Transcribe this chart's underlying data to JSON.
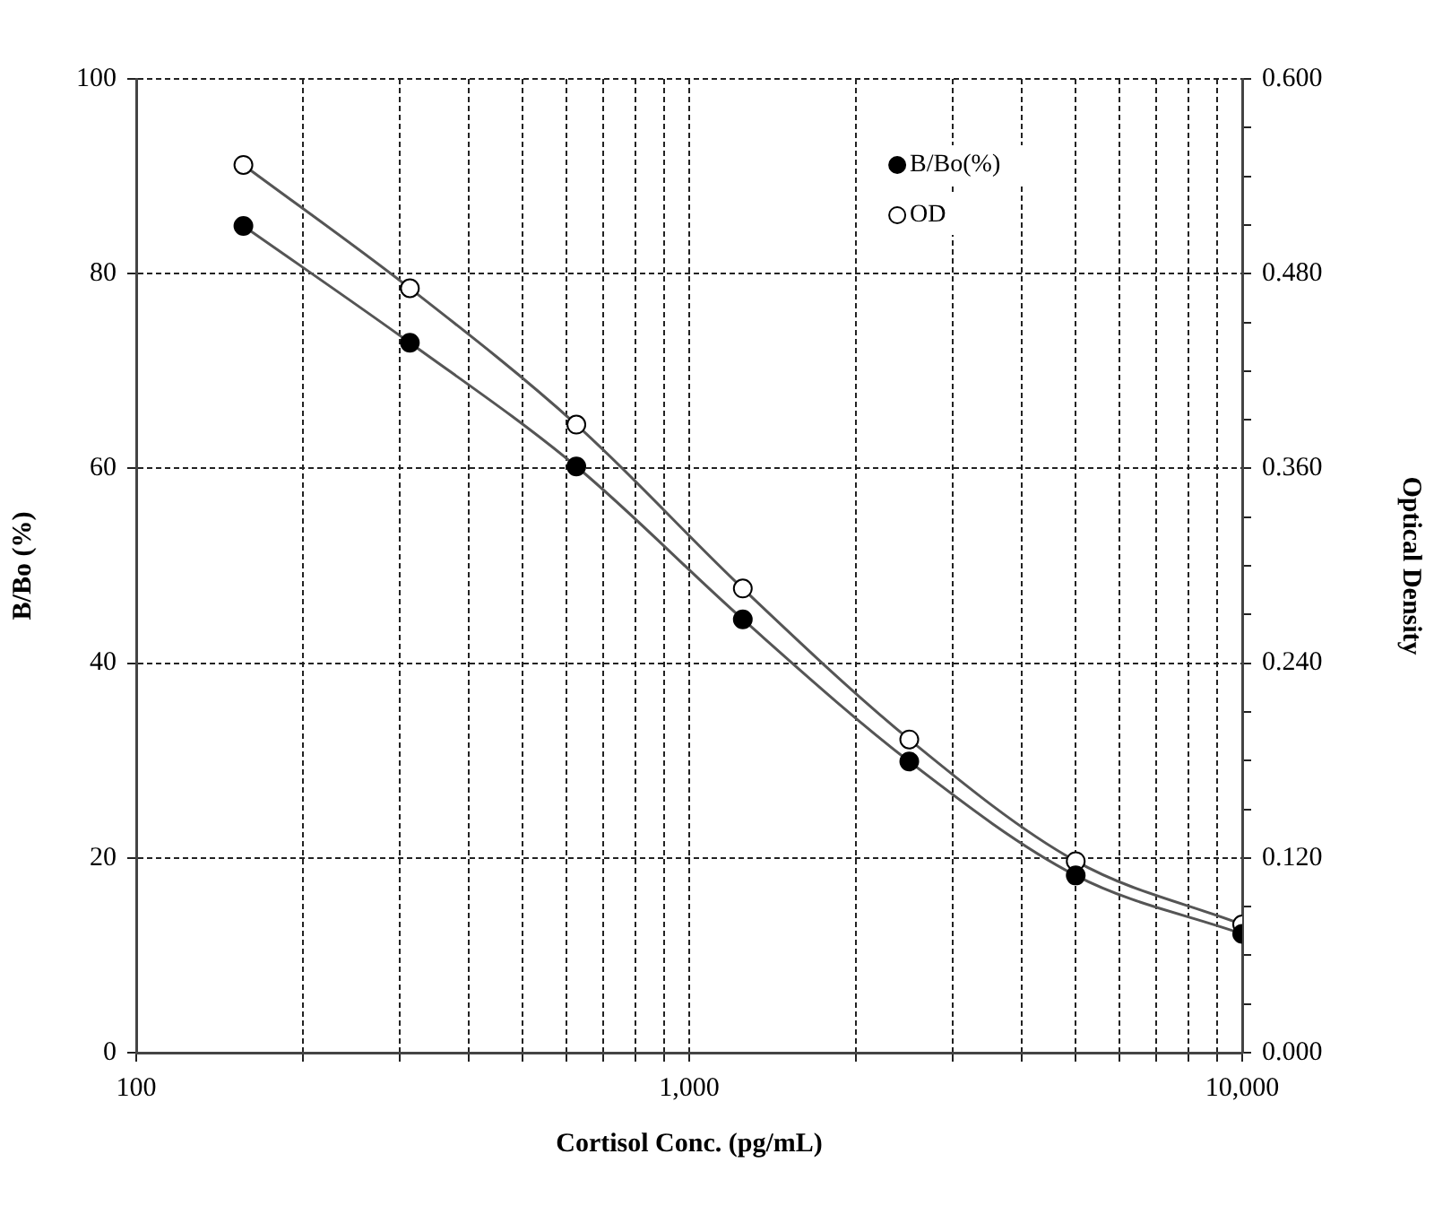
{
  "chart_data": {
    "type": "line",
    "xlabel": "Cortisol Conc. (pg/mL)",
    "ylabel": "B/Bo (%)",
    "y2label": "Optical Density",
    "log": "x",
    "grid": true,
    "legend": "top right",
    "marker": "circle",
    "line_style": "solid",
    "x": [
      156.25,
      312.5,
      625,
      1250,
      2500,
      5000,
      10000
    ],
    "series": [
      {
        "name": "B/Bo(%)",
        "color": "#000000",
        "values": [
          84.9,
          72.9,
          60.2,
          44.5,
          29.9,
          18.2,
          12.2
        ]
      },
      {
        "name": "OD",
        "color": "#ffffff",
        "axis": "y2",
        "values": [
          0.547,
          0.471,
          0.387,
          0.286,
          0.193,
          0.118,
          0.079
        ]
      }
    ],
    "xlim": [
      100,
      10000
    ],
    "xticks": [
      100,
      {
        "value": 200,
        "label": null
      },
      {
        "value": 300,
        "label": null
      },
      {
        "value": 400,
        "label": null
      },
      {
        "value": 500,
        "label": null
      },
      {
        "value": 600,
        "label": null
      },
      {
        "value": 700,
        "label": null
      },
      {
        "value": 800,
        "label": null
      },
      {
        "value": 900,
        "label": null
      },
      {
        "value": 1000,
        "label": "1,000"
      },
      {
        "value": 2000,
        "label": null
      },
      {
        "value": 3000,
        "label": null
      },
      {
        "value": 4000,
        "label": null
      },
      {
        "value": 5000,
        "label": null
      },
      {
        "value": 6000,
        "label": null
      },
      {
        "value": 7000,
        "label": null
      },
      {
        "value": 8000,
        "label": null
      },
      {
        "value": 9000,
        "label": null
      },
      {
        "value": 10000,
        "label": "10,000"
      }
    ],
    "ylim": [
      0,
      100
    ],
    "yticks": [
      0,
      20,
      40,
      60,
      80,
      100
    ],
    "y2lim": [
      0,
      0.6
    ],
    "y2ticks": [
      {
        "value": 0,
        "label": "0.000"
      },
      {
        "value": 0.03,
        "label": null
      },
      {
        "value": 0.06,
        "label": null
      },
      {
        "value": 0.09,
        "label": null
      },
      {
        "value": 0.12,
        "label": "0.120"
      },
      {
        "value": 0.15,
        "label": null
      },
      {
        "value": 0.18,
        "label": null
      },
      {
        "value": 0.21,
        "label": null
      },
      {
        "value": 0.24,
        "label": "0.240"
      },
      {
        "value": 0.27,
        "label": null
      },
      {
        "value": 0.3,
        "label": null
      },
      {
        "value": 0.33,
        "label": null
      },
      {
        "value": 0.36,
        "label": "0.360"
      },
      {
        "value": 0.39,
        "label": null
      },
      {
        "value": 0.42,
        "label": null
      },
      {
        "value": 0.45,
        "label": null
      },
      {
        "value": 0.48,
        "label": "0.480"
      },
      {
        "value": 0.51,
        "label": null
      },
      {
        "value": 0.54,
        "label": null
      },
      {
        "value": 0.57,
        "label": null
      },
      {
        "value": 0.6,
        "label": "0.600"
      }
    ]
  }
}
